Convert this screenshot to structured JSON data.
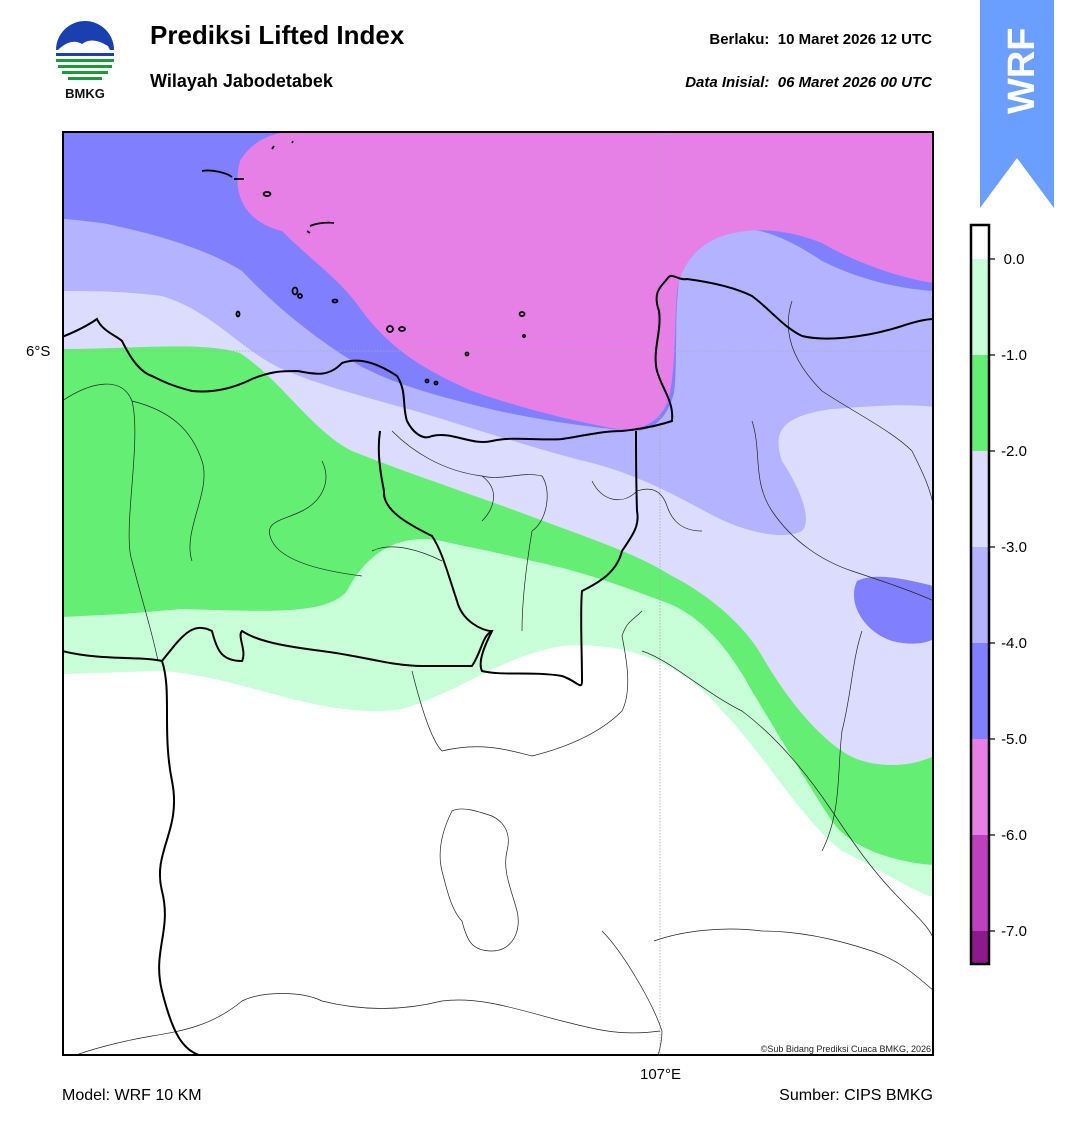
{
  "header": {
    "title": "Prediksi Lifted Index",
    "subtitle": "Wilayah Jabodetabek",
    "valid_label": "Berlaku:",
    "valid_time": "10 Maret 2026 12 UTC",
    "init_label": "Data Inisial:",
    "init_time": "06 Maret 2026 00 UTC"
  },
  "logo": {
    "text": "BMKG",
    "icon": "bmkg-logo-icon"
  },
  "badge": {
    "text": "WRF",
    "color": "#6a9eff"
  },
  "map": {
    "lat_label": "6°S",
    "lon_label": "107°E",
    "copyright": "©Sub Bidang Prediksi Cuaca BMKG, 2026"
  },
  "footer": {
    "model": "Model: WRF 10 KM",
    "source": "Sumber: CIPS BMKG"
  },
  "colorbar": {
    "ticks": [
      "0.0",
      "-1.0",
      "-2.0",
      "-3.0",
      "-4.0",
      "-5.0",
      "-6.0",
      "-7.0"
    ],
    "colors": [
      "#c8ffd8",
      "#64ee74",
      "#dcdcff",
      "#b3b3ff",
      "#8080ff",
      "#e680e6",
      "#bf40bf",
      "#8c1a8c"
    ]
  }
}
